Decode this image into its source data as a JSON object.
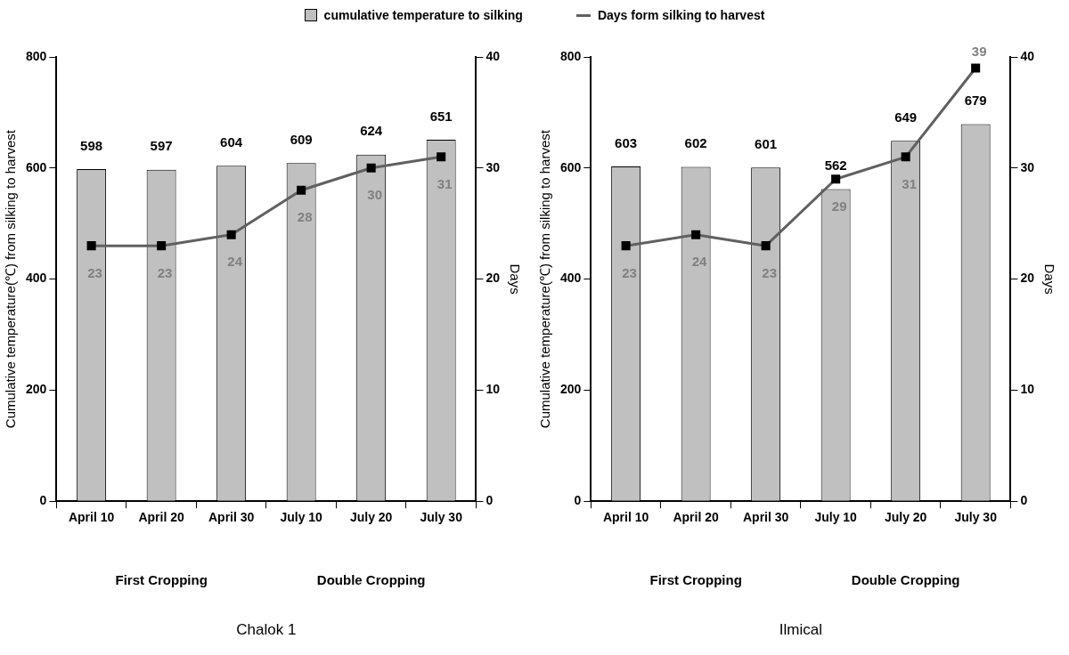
{
  "chart_data": [
    {
      "type": "bar",
      "title": "Chalok 1",
      "categories": [
        "April 10",
        "April 20",
        "April 30",
        "July 10",
        "July 20",
        "July 30"
      ],
      "ylabel": "Cumulative temperature(℃) from silking to harvest",
      "y2label": "Days",
      "annotations": [
        "First Cropping",
        "Double Cropping"
      ],
      "series": [
        {
          "name": "cumulative temperature to silking",
          "color": "#c0c0c0",
          "values": [
            598,
            597,
            604,
            609,
            624,
            651
          ]
        },
        {
          "name": "Days form silking to harvest",
          "type": "line",
          "axis": "y2",
          "color": "#606060",
          "values": [
            23,
            23,
            24,
            28,
            30,
            31
          ]
        }
      ],
      "ylim": [
        0,
        800
      ],
      "yticks": [
        0,
        200,
        400,
        600,
        800
      ],
      "y2lim": [
        0,
        40
      ],
      "y2ticks": [
        0,
        10,
        20,
        30,
        40
      ],
      "grid": false,
      "legend": "top",
      "marker": "square",
      "data_labels": true
    },
    {
      "type": "bar",
      "title": "Ilmical",
      "categories": [
        "April 10",
        "April 20",
        "April 30",
        "July 10",
        "July 20",
        "July 30"
      ],
      "ylabel": "Cumulative temperature(℃) from silking to harvest",
      "y2label": "Days",
      "annotations": [
        "First Cropping",
        "Double Cropping"
      ],
      "series": [
        {
          "color": "#c0c0c0",
          "values": [
            603,
            602,
            601,
            562,
            649,
            679
          ]
        },
        {
          "type": "line",
          "axis": "y2",
          "color": "#606060",
          "values": [
            23,
            24,
            23,
            29,
            31,
            39
          ]
        }
      ],
      "ylim": [
        0,
        800
      ],
      "yticks": [
        0,
        200,
        400,
        600,
        800
      ],
      "y2lim": [
        0,
        40
      ],
      "y2ticks": [
        0,
        10,
        20,
        30,
        40
      ],
      "grid": false,
      "marker": "square",
      "data_labels": true
    }
  ]
}
